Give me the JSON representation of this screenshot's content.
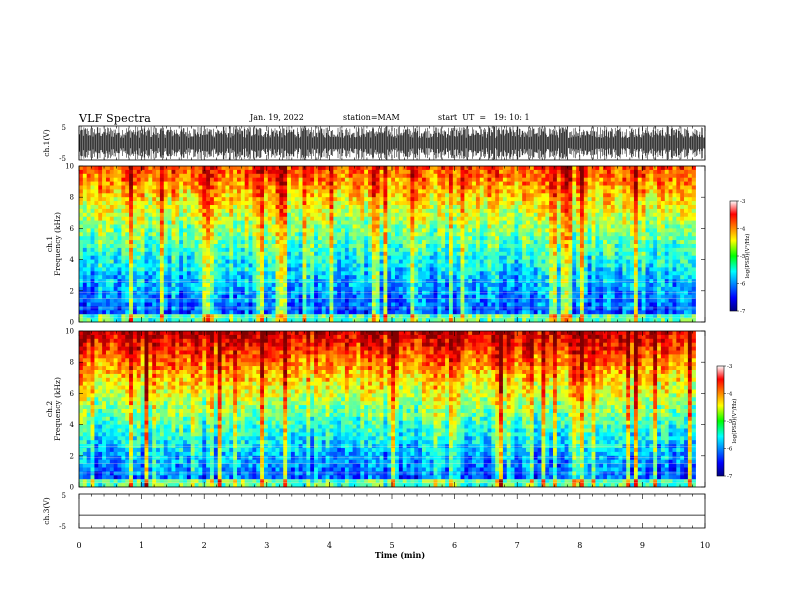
{
  "header": {
    "title": "VLF Spectra",
    "date": "Jan. 19, 2022",
    "station": "station=MAM",
    "start": "start  UT  =   19: 10: 1"
  },
  "chart_data": [
    {
      "type": "line",
      "panel": "ch1-waveform",
      "ylabel": "ch.1(V)",
      "ylim": [
        -5,
        5
      ],
      "y_ticks": [
        "5",
        "-5"
      ],
      "xlim": [
        0,
        10
      ]
    },
    {
      "type": "heatmap",
      "panel": "ch1-spectrogram",
      "ylabel_lines": [
        "ch.1",
        "Frequency  (kHz)"
      ],
      "ylim": [
        0,
        10
      ],
      "y_ticks": [
        "0",
        "2",
        "4",
        "6",
        "8",
        "10"
      ],
      "xlim": [
        0,
        9.85
      ],
      "colorbar": {
        "label": "log(PSD)(V²/Hz)",
        "range": [
          -7,
          -3
        ],
        "ticks": [
          "-3",
          "-4",
          "-5",
          "-6",
          "-7"
        ]
      }
    },
    {
      "type": "heatmap",
      "panel": "ch2-spectrogram",
      "ylabel_lines": [
        "ch.2",
        "Frequency  (kHz)"
      ],
      "ylim": [
        0,
        10
      ],
      "y_ticks": [
        "0",
        "2",
        "4",
        "6",
        "8",
        "10"
      ],
      "xlim": [
        0,
        9.85
      ],
      "colorbar": {
        "label": "log(PSD)(V²/Hz)",
        "range": [
          -7,
          -3
        ],
        "ticks": [
          "-3",
          "-4",
          "-5",
          "-6",
          "-7"
        ]
      }
    },
    {
      "type": "line",
      "panel": "ch3-waveform",
      "ylabel": "ch.3(V)",
      "ylim": [
        -5,
        5
      ],
      "y_ticks": [
        "5",
        "-5"
      ],
      "xlim": [
        0,
        10
      ],
      "constant_value": -1.2
    }
  ],
  "xaxis": {
    "label": "Time  (min)",
    "ticks": [
      "0",
      "1",
      "2",
      "3",
      "4",
      "5",
      "6",
      "7",
      "8",
      "9",
      "10"
    ]
  }
}
